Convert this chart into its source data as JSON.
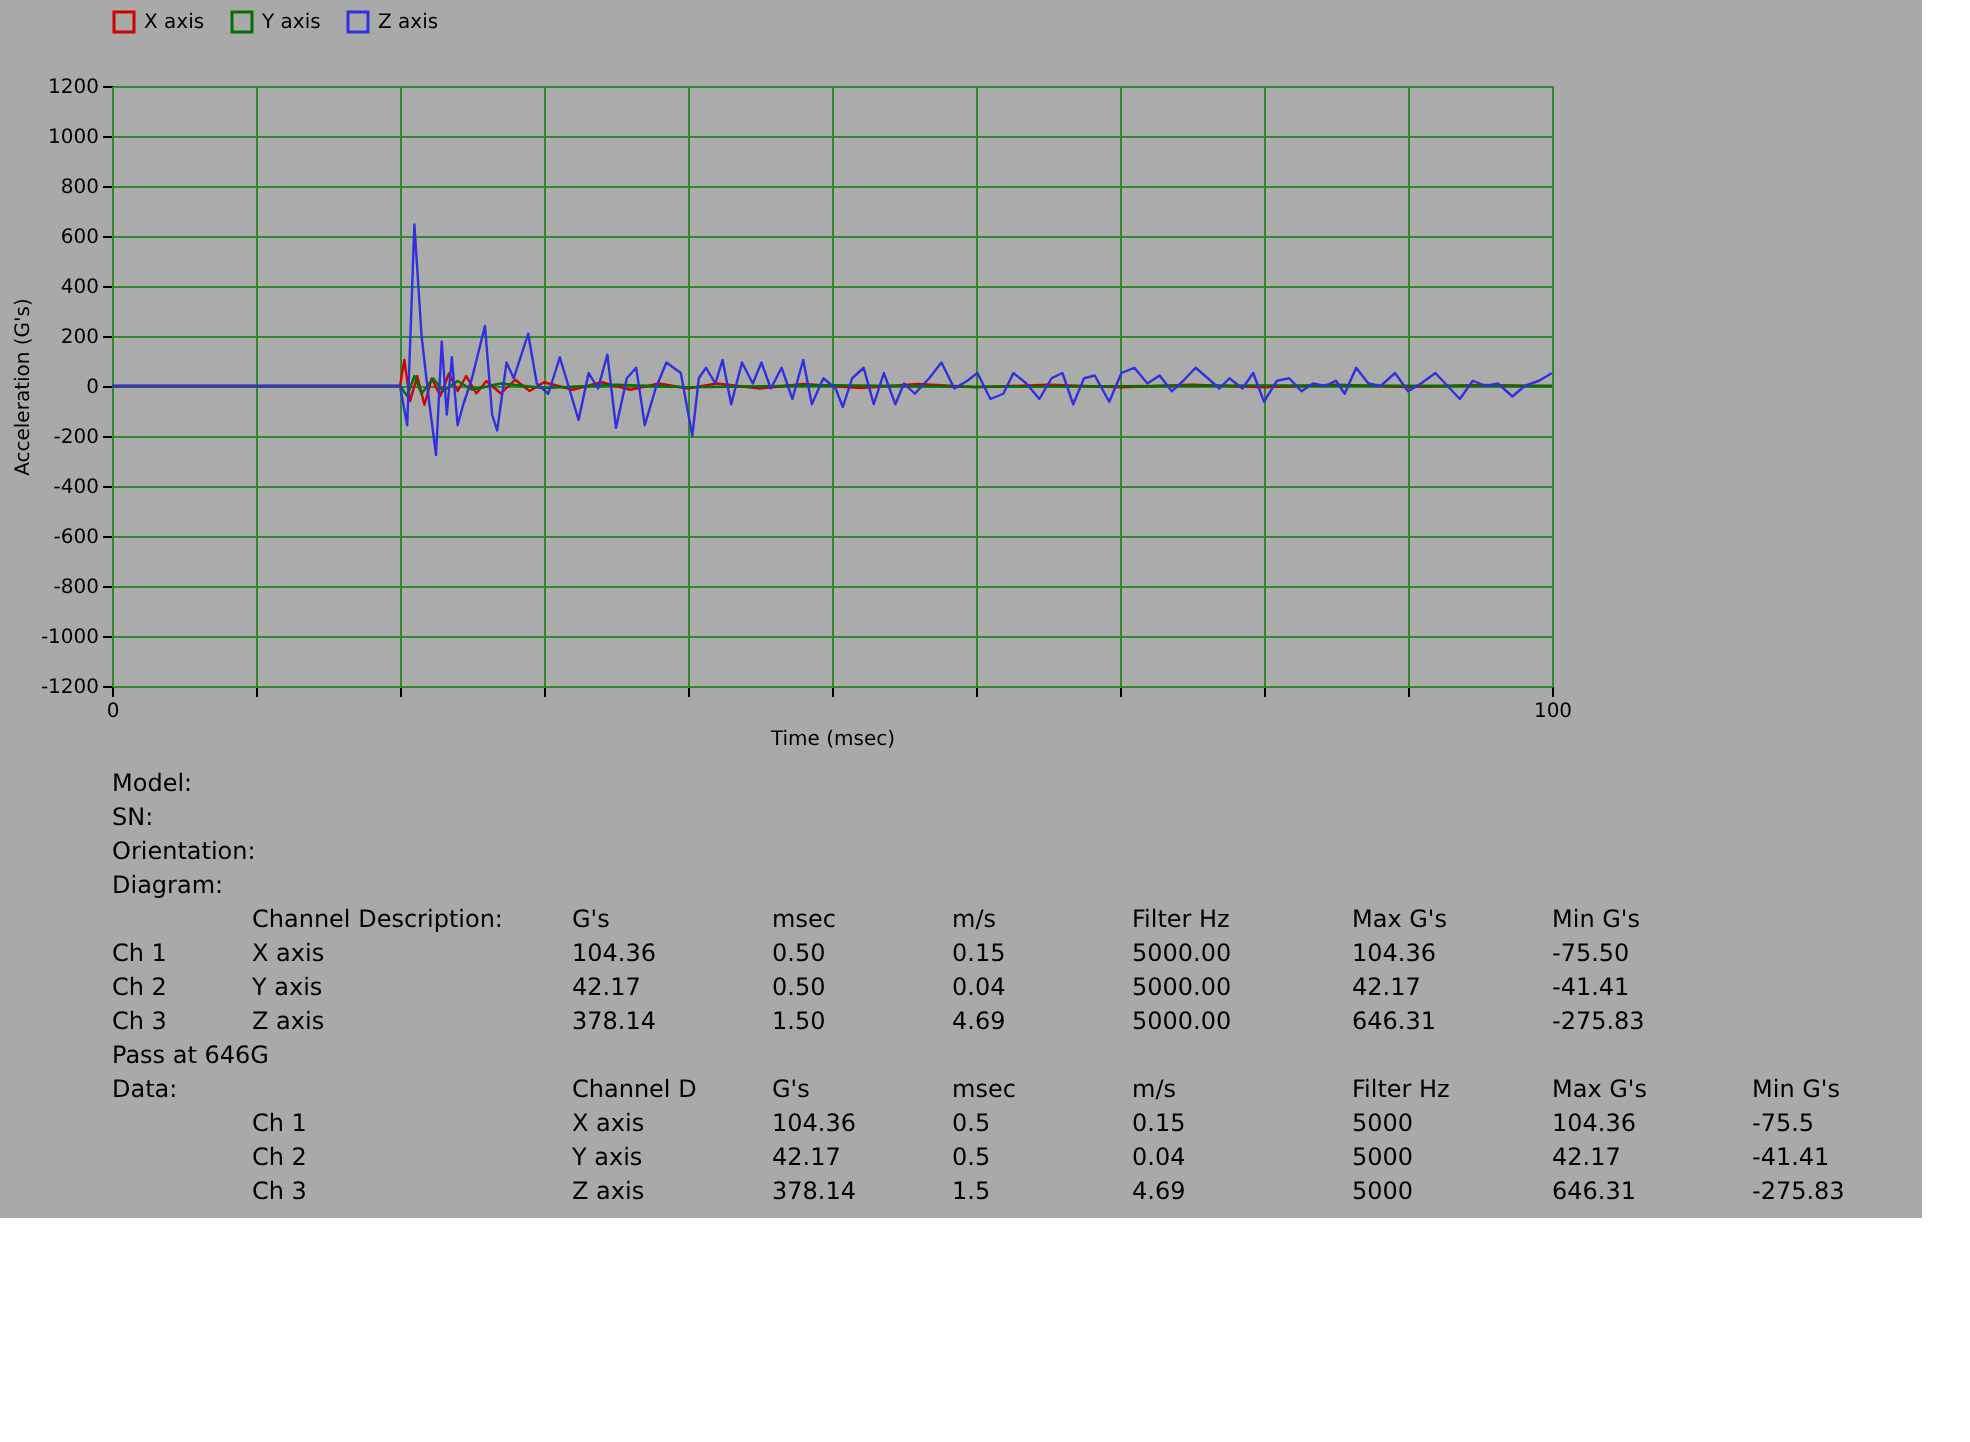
{
  "chart_data": {
    "type": "line",
    "xlabel": "Time (msec)",
    "ylabel": "Acceleration (G's)",
    "xlim": [
      0,
      100
    ],
    "xticks": [
      0,
      {
        "value": 10,
        "label": null
      },
      {
        "value": 20,
        "label": null
      },
      {
        "value": 30,
        "label": null
      },
      {
        "value": 40,
        "label": null
      },
      {
        "value": 50,
        "label": null
      },
      {
        "value": 60,
        "label": null
      },
      {
        "value": 70,
        "label": null
      },
      {
        "value": 80,
        "label": null
      },
      {
        "value": 90,
        "label": null
      },
      100
    ],
    "ylim": [
      -1200,
      1200
    ],
    "yticks": [
      -1200,
      -1000,
      -800,
      -600,
      -400,
      -200,
      0,
      200,
      400,
      600,
      800,
      1000,
      1200
    ],
    "grid": true,
    "legend": "top left",
    "marker": "none",
    "line_style": "solid",
    "series": [
      {
        "name": "X axis",
        "color": "#d00000",
        "x": [
          0,
          19.5,
          20,
          20.3,
          20.7,
          21.2,
          21.7,
          22.2,
          22.8,
          23.4,
          24,
          24.6,
          25.3,
          26,
          27,
          28,
          29,
          30,
          32,
          34,
          36,
          38,
          40,
          42,
          45,
          48,
          52,
          56,
          60,
          65,
          70,
          75,
          80,
          85,
          90,
          95,
          100
        ],
        "values": [
          0,
          0,
          0,
          104,
          -60,
          40,
          -75,
          30,
          -40,
          50,
          -20,
          40,
          -30,
          20,
          -30,
          25,
          -20,
          15,
          -15,
          15,
          -15,
          10,
          -10,
          10,
          -10,
          8,
          -8,
          8,
          -5,
          5,
          -5,
          5,
          -5,
          5,
          -4,
          4,
          0
        ]
      },
      {
        "name": "Y axis",
        "color": "#007000",
        "x": [
          0,
          19.5,
          20,
          20.5,
          21,
          21.5,
          22.3,
          23,
          24,
          25,
          27,
          30,
          35,
          40,
          50,
          60,
          80,
          100
        ],
        "values": [
          0,
          0,
          0,
          -40,
          40,
          -30,
          30,
          -20,
          20,
          -15,
          10,
          -8,
          5,
          -5,
          3,
          -3,
          2,
          0
        ]
      },
      {
        "name": "Z axis",
        "color": "#3030e0",
        "x": [
          0,
          19.5,
          20,
          20.5,
          21,
          21.5,
          22,
          22.5,
          22.9,
          23.25,
          23.6,
          24,
          24.4,
          25,
          25.9,
          26.4,
          26.75,
          27.4,
          27.9,
          28.9,
          29.5,
          30.3,
          31.1,
          31.75,
          32.4,
          33.1,
          33.75,
          34.4,
          35,
          35.75,
          36.4,
          37,
          37.75,
          38.5,
          39.5,
          40.3,
          40.75,
          41.25,
          41.9,
          42.4,
          43,
          43.75,
          44.5,
          45.1,
          45.75,
          46.5,
          47.25,
          48,
          48.6,
          49.4,
          50.25,
          50.75,
          51.4,
          52.2,
          52.9,
          53.6,
          54.4,
          55,
          55.75,
          56.75,
          57.6,
          58.5,
          59.4,
          60.1,
          61,
          61.9,
          62.6,
          63.5,
          64.4,
          65.25,
          66,
          66.75,
          67.5,
          68.25,
          69.25,
          70.1,
          71,
          71.9,
          72.75,
          73.6,
          74.4,
          75.25,
          76.1,
          76.9,
          77.6,
          78.5,
          79.25,
          80,
          80.9,
          81.75,
          82.6,
          83.4,
          84.25,
          85,
          85.6,
          86.4,
          87.25,
          88.1,
          89.1,
          90,
          90.9,
          91.9,
          92.75,
          93.6,
          94.5,
          95.4,
          96.25,
          97.25,
          98.1,
          99.1,
          100
        ],
        "values": [
          0,
          0,
          0,
          -157,
          646,
          199,
          -52,
          -276,
          178,
          -115,
          115,
          -157,
          -73,
          31,
          240,
          -115,
          -178,
          94,
          31,
          209,
          10,
          -31,
          115,
          -10,
          -136,
          52,
          -10,
          125,
          -167,
          31,
          73,
          -157,
          -10,
          94,
          52,
          -199,
          31,
          73,
          10,
          104,
          -73,
          94,
          10,
          94,
          -10,
          73,
          -52,
          104,
          -73,
          31,
          -10,
          -84,
          31,
          73,
          -73,
          52,
          -73,
          10,
          -31,
          31,
          94,
          -10,
          21,
          52,
          -52,
          -31,
          52,
          10,
          -52,
          31,
          52,
          -73,
          31,
          42,
          -63,
          52,
          73,
          10,
          42,
          -21,
          21,
          73,
          31,
          -10,
          31,
          -10,
          52,
          -63,
          21,
          31,
          -21,
          10,
          0,
          21,
          -31,
          73,
          10,
          0,
          52,
          -21,
          10,
          52,
          0,
          -52,
          21,
          0,
          10,
          -42,
          0,
          21,
          52
        ]
      }
    ],
    "annotations": [
      "Model:",
      "SN:",
      "Orientation:",
      "Diagram:",
      "\tChannel Description:\tG's\tmsec\tm/s\tFilter Hz\tMax G's\tMin G's",
      "Ch 1\tX axis\t104.36\t0.50\t0.15\t5000.00\t104.36\t-75.50",
      "Ch 2\tY axis\t42.17\t0.50\t0.04\t5000.00\t42.17\t-41.41",
      "Ch 3\tZ axis\t378.14\t1.50\t4.69\t5000.00\t646.31\t-275.83",
      "Pass at 646G",
      "Data:\t\tChannel D\tG's\tmsec\tm/s\tFilter Hz\tMax G's\tMin G's",
      "\tCh 1\tX axis\t104.36\t0.5\t0.15\t5000\t104.36\t-75.5",
      "\tCh 2\tY axis\t42.17\t0.5\t0.04\t5000\t42.17\t-41.41",
      "\tCh 3\tZ axis\t378.14\t1.5\t4.69\t5000\t646.31\t-275.83"
    ]
  }
}
